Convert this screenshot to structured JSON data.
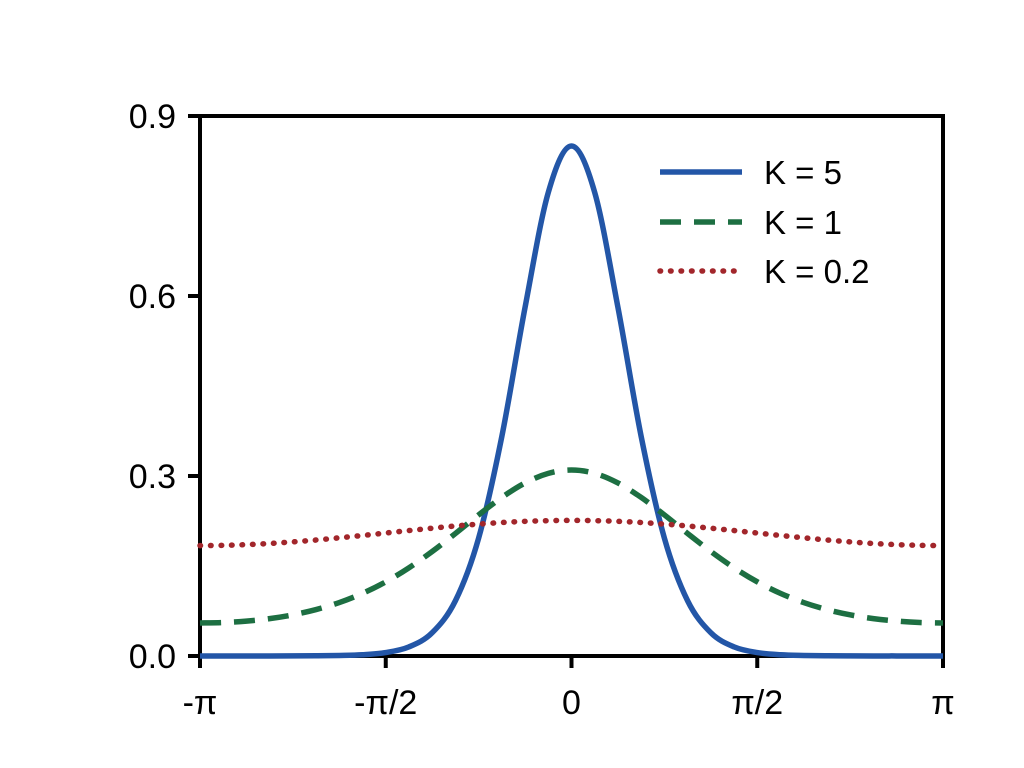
{
  "figure": {
    "background": "#ffffff",
    "text_color": "#000000",
    "axis_color": "#000000"
  },
  "chart_data": {
    "type": "line",
    "title": "",
    "xlabel": "",
    "ylabel": "",
    "x_unit": "pi_radians",
    "xlim_pi": [
      -1,
      1
    ],
    "ylim": [
      0,
      0.9
    ],
    "grid": false,
    "x_tick_values_pi": [
      -1,
      -0.5,
      0,
      0.5,
      1
    ],
    "x_tick_labels": [
      "-π",
      "-π/2",
      "0",
      "π/2",
      "π"
    ],
    "y_tick_values": [
      0,
      0.3,
      0.6,
      0.9
    ],
    "y_tick_labels": [
      "0.0",
      "0.3",
      "0.6",
      "0.9"
    ],
    "legend": {
      "position": "upper-right",
      "frame": false,
      "entries": [
        "K = 5",
        "K = 1",
        "K = 0.2"
      ]
    },
    "x_pi": [
      -1,
      -0.9375,
      -0.875,
      -0.8125,
      -0.75,
      -0.6875,
      -0.625,
      -0.5625,
      -0.5,
      -0.4375,
      -0.375,
      -0.3125,
      -0.25,
      -0.1875,
      -0.125,
      -0.0625,
      0,
      0.0625,
      0.125,
      0.1875,
      0.25,
      0.3125,
      0.375,
      0.4375,
      0.5,
      0.5625,
      0.625,
      0.6875,
      0.75,
      0.8125,
      0.875,
      0.9375,
      1
    ],
    "series": [
      {
        "name": "K = 5",
        "color": "#2356A7",
        "line_style": "solid",
        "values": [
          0.0,
          0.0,
          0.0001,
          0.0001,
          0.0002,
          0.0004,
          0.0009,
          0.0021,
          0.0057,
          0.0152,
          0.0388,
          0.0921,
          0.1965,
          0.366,
          0.581,
          0.7725,
          0.85,
          0.7725,
          0.581,
          0.366,
          0.1965,
          0.0921,
          0.0388,
          0.0152,
          0.0057,
          0.0021,
          0.0009,
          0.0004,
          0.0002,
          0.0001,
          0.0001,
          0.0,
          0.0
        ]
      },
      {
        "name": "K = 1",
        "color": "#1D6F42",
        "line_style": "dashed",
        "values": [
          0.055,
          0.0558,
          0.0582,
          0.0623,
          0.0686,
          0.0774,
          0.0891,
          0.1044,
          0.1236,
          0.147,
          0.1742,
          0.2042,
          0.2352,
          0.2643,
          0.2884,
          0.3044,
          0.31,
          0.3044,
          0.2884,
          0.2643,
          0.2352,
          0.2042,
          0.1742,
          0.147,
          0.1236,
          0.1044,
          0.0891,
          0.0774,
          0.0686,
          0.0623,
          0.0582,
          0.0558,
          0.055
        ]
      },
      {
        "name": "K = 0.2",
        "color": "#A2262B",
        "line_style": "dotted",
        "values": [
          0.184,
          0.1844,
          0.1856,
          0.1875,
          0.1902,
          0.1933,
          0.197,
          0.2009,
          0.205,
          0.2091,
          0.213,
          0.2167,
          0.2198,
          0.2225,
          0.2244,
          0.2256,
          0.226,
          0.2256,
          0.2244,
          0.2225,
          0.2198,
          0.2167,
          0.213,
          0.2091,
          0.205,
          0.2009,
          0.197,
          0.1933,
          0.1902,
          0.1875,
          0.1856,
          0.1844,
          0.184
        ]
      }
    ]
  }
}
